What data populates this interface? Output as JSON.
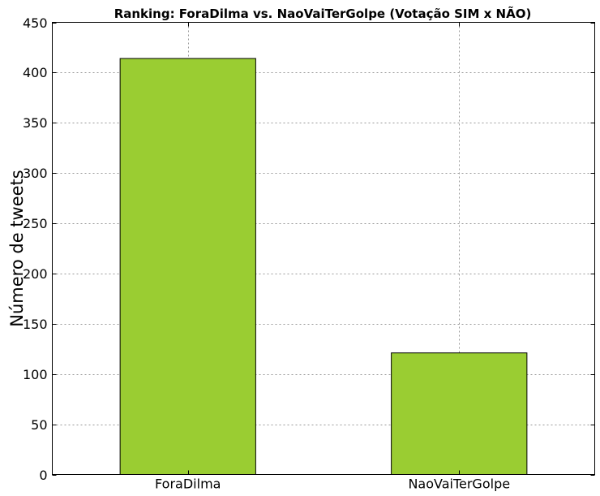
{
  "chart_data": {
    "type": "bar",
    "title": "Ranking: ForaDilma vs. NaoVaiTerGolpe (Votação SIM x NÃO)",
    "xlabel": "",
    "ylabel": "Número de tweets",
    "categories": [
      "ForaDilma",
      "NaoVaiTerGolpe"
    ],
    "values": [
      414,
      121
    ],
    "ylim": [
      0,
      450
    ],
    "yticks": [
      0,
      50,
      100,
      150,
      200,
      250,
      300,
      350,
      400,
      450
    ],
    "grid": true,
    "legend": "none",
    "bar_color": "#9acd32"
  }
}
